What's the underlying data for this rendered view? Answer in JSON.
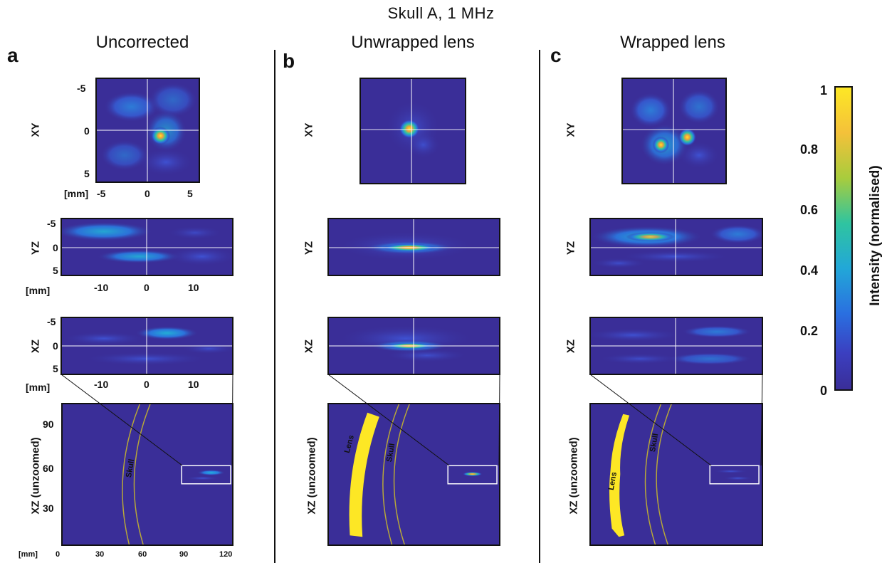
{
  "title": "Skull A, 1 MHz",
  "columns": [
    {
      "letter": "a",
      "label": "Uncorrected"
    },
    {
      "letter": "b",
      "label": "Unwrapped lens"
    },
    {
      "letter": "c",
      "label": "Wrapped lens"
    }
  ],
  "rows": {
    "xy": "XY",
    "yz": "YZ",
    "xz": "XZ",
    "xz_unzoomed": "XZ (unzoomed)"
  },
  "axes": {
    "unit": "[mm]",
    "xy_y_ticks": [
      "-5",
      "0",
      "5"
    ],
    "xy_x_ticks": [
      "-5",
      "0",
      "5"
    ],
    "yz_y_ticks": [
      "-5",
      "0",
      "5"
    ],
    "yz_x_ticks": [
      "-10",
      "0",
      "10"
    ],
    "xz_y_ticks": [
      "-5",
      "0",
      "5"
    ],
    "xz_x_ticks": [
      "-10",
      "0",
      "10"
    ],
    "unz_y_ticks": [
      "90",
      "60",
      "30"
    ],
    "unz_x_ticks": [
      "0",
      "30",
      "60",
      "90",
      "120"
    ]
  },
  "annotations": {
    "skull": "Skull",
    "lens": "Lens"
  },
  "colorbar": {
    "label": "Intensity (normalised)",
    "ticks": [
      "1",
      "0.8",
      "0.6",
      "0.4",
      "0.2",
      "0"
    ],
    "colors": [
      "#fde725",
      "#f4c13a",
      "#a8cc3d",
      "#2fc4a0",
      "#22a7d8",
      "#2a6fe0",
      "#3b3fc0",
      "#3a2e98"
    ]
  }
}
